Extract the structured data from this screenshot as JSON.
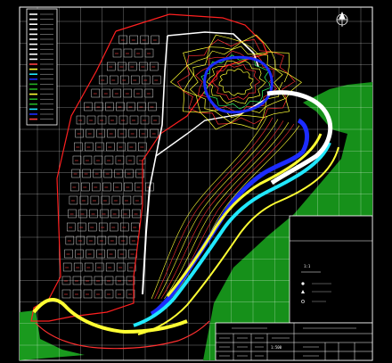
{
  "drawing": {
    "title_block": {
      "scale_label": "1:500"
    },
    "legend_right": {
      "scale_text": "1:1"
    },
    "colors": {
      "background": "#000000",
      "grid": "#ffffff",
      "boundary": "#ff2020",
      "road": "#ffffff",
      "contour_yellow": "#ffff33",
      "contour_red": "#ff3030",
      "water": "#1c2cff",
      "channel_cyan": "#21e8ff",
      "vegetation": "#22b024",
      "lot_labels": "#ff4040"
    }
  }
}
